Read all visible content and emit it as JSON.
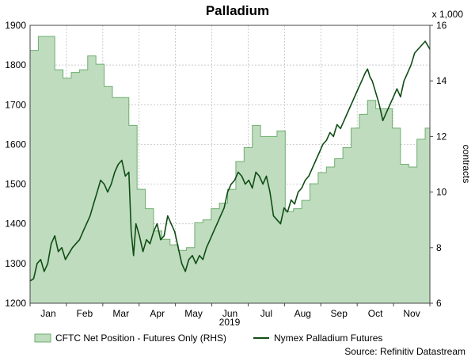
{
  "chart_data": {
    "type": "area+line",
    "title": "Palladium",
    "xlabel": "2019",
    "ylabel_left": "",
    "ylabel_right": "contracts",
    "right_multiplier": "x 1,000",
    "source": "Source: Refinitiv Datastream",
    "x_months": [
      "Jan",
      "Feb",
      "Mar",
      "Apr",
      "May",
      "Jun",
      "Jul",
      "Aug",
      "Sep",
      "Oct",
      "Nov"
    ],
    "x_range_days": [
      0,
      340
    ],
    "ylim_left": [
      1200,
      1900
    ],
    "yticks_left": [
      "1200",
      "1300",
      "1400",
      "1500",
      "1600",
      "1700",
      "1800",
      "1900"
    ],
    "ylim_right": [
      6,
      16
    ],
    "yticks_right": [
      "6",
      "8",
      "10",
      "12",
      "14",
      "16"
    ],
    "grid": true,
    "legend_position": "bottom",
    "colors": {
      "area_fill": "#bfdcbf",
      "area_edge": "#6fae6f",
      "line": "#0f4d14",
      "grid": "#b8b8b8"
    },
    "series": [
      {
        "name": "CFTC Net Position - Futures Only (RHS)",
        "axis": "right",
        "kind": "step-area",
        "values": [
          [
            0,
            15.1
          ],
          [
            7,
            15.6
          ],
          [
            21,
            14.4
          ],
          [
            28,
            14.1
          ],
          [
            35,
            14.3
          ],
          [
            42,
            14.4
          ],
          [
            49,
            14.9
          ],
          [
            56,
            14.6
          ],
          [
            63,
            13.8
          ],
          [
            70,
            13.4
          ],
          [
            77,
            13.4
          ],
          [
            84,
            12.4
          ],
          [
            91,
            10.1
          ],
          [
            98,
            9.4
          ],
          [
            105,
            8.6
          ],
          [
            112,
            8.3
          ],
          [
            119,
            8.1
          ],
          [
            126,
            7.9
          ],
          [
            133,
            8.0
          ],
          [
            140,
            8.9
          ],
          [
            147,
            9.0
          ],
          [
            154,
            9.4
          ],
          [
            161,
            9.6
          ],
          [
            168,
            10.1
          ],
          [
            175,
            11.1
          ],
          [
            182,
            11.6
          ],
          [
            189,
            12.4
          ],
          [
            196,
            12.0
          ],
          [
            203,
            12.0
          ],
          [
            210,
            12.2
          ],
          [
            217,
            9.3
          ],
          [
            224,
            9.4
          ],
          [
            231,
            9.7
          ],
          [
            238,
            10.3
          ],
          [
            245,
            10.7
          ],
          [
            252,
            10.9
          ],
          [
            259,
            11.2
          ],
          [
            266,
            11.6
          ],
          [
            273,
            12.3
          ],
          [
            280,
            12.8
          ],
          [
            287,
            13.3
          ],
          [
            294,
            13.0
          ],
          [
            301,
            13.0
          ],
          [
            308,
            12.3
          ],
          [
            315,
            11.0
          ],
          [
            322,
            10.9
          ],
          [
            329,
            11.9
          ],
          [
            336,
            12.3
          ],
          [
            340,
            12.3
          ]
        ]
      },
      {
        "name": "Nymex Palladium Futures",
        "axis": "left",
        "kind": "line",
        "values": [
          [
            0,
            1256
          ],
          [
            3,
            1262
          ],
          [
            6,
            1300
          ],
          [
            9,
            1310
          ],
          [
            12,
            1280
          ],
          [
            15,
            1300
          ],
          [
            18,
            1350
          ],
          [
            21,
            1370
          ],
          [
            24,
            1330
          ],
          [
            27,
            1340
          ],
          [
            30,
            1310
          ],
          [
            33,
            1325
          ],
          [
            36,
            1340
          ],
          [
            39,
            1350
          ],
          [
            42,
            1360
          ],
          [
            45,
            1380
          ],
          [
            48,
            1400
          ],
          [
            51,
            1420
          ],
          [
            54,
            1450
          ],
          [
            57,
            1480
          ],
          [
            60,
            1510
          ],
          [
            63,
            1500
          ],
          [
            66,
            1480
          ],
          [
            69,
            1500
          ],
          [
            72,
            1530
          ],
          [
            75,
            1550
          ],
          [
            78,
            1560
          ],
          [
            81,
            1520
          ],
          [
            84,
            1530
          ],
          [
            86,
            1380
          ],
          [
            88,
            1320
          ],
          [
            90,
            1400
          ],
          [
            93,
            1370
          ],
          [
            96,
            1330
          ],
          [
            99,
            1360
          ],
          [
            102,
            1350
          ],
          [
            105,
            1380
          ],
          [
            108,
            1400
          ],
          [
            111,
            1360
          ],
          [
            114,
            1370
          ],
          [
            117,
            1420
          ],
          [
            120,
            1400
          ],
          [
            123,
            1380
          ],
          [
            126,
            1340
          ],
          [
            129,
            1300
          ],
          [
            132,
            1280
          ],
          [
            135,
            1310
          ],
          [
            138,
            1320
          ],
          [
            141,
            1300
          ],
          [
            144,
            1320
          ],
          [
            147,
            1310
          ],
          [
            150,
            1340
          ],
          [
            153,
            1360
          ],
          [
            156,
            1380
          ],
          [
            159,
            1400
          ],
          [
            162,
            1420
          ],
          [
            165,
            1440
          ],
          [
            168,
            1480
          ],
          [
            171,
            1500
          ],
          [
            174,
            1510
          ],
          [
            177,
            1530
          ],
          [
            180,
            1520
          ],
          [
            183,
            1500
          ],
          [
            186,
            1510
          ],
          [
            189,
            1490
          ],
          [
            192,
            1530
          ],
          [
            195,
            1520
          ],
          [
            198,
            1500
          ],
          [
            201,
            1520
          ],
          [
            204,
            1480
          ],
          [
            207,
            1420
          ],
          [
            210,
            1410
          ],
          [
            213,
            1400
          ],
          [
            216,
            1440
          ],
          [
            219,
            1430
          ],
          [
            222,
            1460
          ],
          [
            225,
            1450
          ],
          [
            228,
            1480
          ],
          [
            231,
            1490
          ],
          [
            234,
            1510
          ],
          [
            237,
            1520
          ],
          [
            240,
            1540
          ],
          [
            243,
            1560
          ],
          [
            246,
            1580
          ],
          [
            249,
            1600
          ],
          [
            252,
            1610
          ],
          [
            255,
            1630
          ],
          [
            258,
            1620
          ],
          [
            261,
            1650
          ],
          [
            264,
            1640
          ],
          [
            267,
            1660
          ],
          [
            270,
            1680
          ],
          [
            273,
            1700
          ],
          [
            276,
            1720
          ],
          [
            279,
            1740
          ],
          [
            282,
            1760
          ],
          [
            285,
            1780
          ],
          [
            287,
            1790
          ],
          [
            289,
            1770
          ],
          [
            291,
            1760
          ],
          [
            293,
            1740
          ],
          [
            295,
            1720
          ],
          [
            297,
            1700
          ],
          [
            300,
            1660
          ],
          [
            303,
            1680
          ],
          [
            306,
            1700
          ],
          [
            309,
            1720
          ],
          [
            312,
            1740
          ],
          [
            315,
            1720
          ],
          [
            318,
            1760
          ],
          [
            321,
            1780
          ],
          [
            324,
            1800
          ],
          [
            327,
            1830
          ],
          [
            330,
            1840
          ],
          [
            333,
            1850
          ],
          [
            336,
            1860
          ],
          [
            340,
            1840
          ]
        ]
      }
    ]
  }
}
